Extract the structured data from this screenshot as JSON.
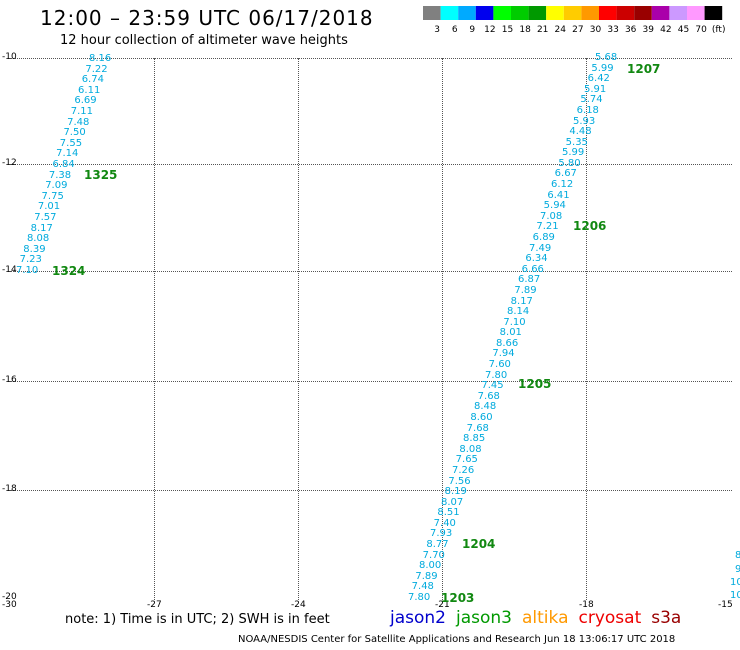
{
  "title": "12:00 – 23:59 UTC 06/17/2018",
  "subtitle": "12 hour collection of altimeter wave heights",
  "legend": {
    "labels": [
      "3",
      "6",
      "9",
      "12",
      "15",
      "18",
      "21",
      "24",
      "27",
      "30",
      "33",
      "36",
      "39",
      "42",
      "45",
      "70",
      "(ft)"
    ],
    "colors": [
      "#808080",
      "#00ffff",
      "#00aaff",
      "#0000ee",
      "#00ff00",
      "#00cc00",
      "#009900",
      "#ffff00",
      "#ffcc00",
      "#ff9900",
      "#ff0000",
      "#cc0000",
      "#990000",
      "#aa00aa",
      "#cc99ff",
      "#ff99ff",
      "#000000"
    ]
  },
  "axes": {
    "y_labels": [
      "-10",
      "-12",
      "-14",
      "-16",
      "-18",
      "-20"
    ],
    "x_labels": [
      "-30",
      "-27",
      "-24",
      "-21",
      "-18",
      "-15"
    ]
  },
  "tracks": [
    {
      "id": "left",
      "values": [
        "8.16",
        "7.22",
        "6.74",
        "6.11",
        "6.69",
        "7.11",
        "7.48",
        "7.50",
        "7.55",
        "7.14",
        "6.84",
        "7.38",
        "7.09",
        "7.75",
        "7.01",
        "7.57",
        "8.17",
        "8.08",
        "8.39",
        "7.23",
        "7.10"
      ]
    },
    {
      "id": "right",
      "values": [
        "5.68",
        "5.99",
        "6.42",
        "5.91",
        "5.74",
        "6.18",
        "5.93",
        "4.48",
        "5.35",
        "5.99",
        "5.80",
        "6.67",
        "6.12",
        "6.41",
        "5.94",
        "7.08",
        "7.21",
        "6.89",
        "7.49",
        "6.34",
        "6.66",
        "6.87",
        "7.89",
        "8.17",
        "8.14",
        "7.10",
        "8.01",
        "8.66",
        "7.94",
        "7.60",
        "7.80",
        "7.45",
        "7.68",
        "8.48",
        "8.60",
        "7.68",
        "8.85",
        "8.08",
        "7.65",
        "7.26",
        "7.56",
        "8.19",
        "8.07",
        "8.51",
        "7.40",
        "7.93",
        "8.77",
        "7.70",
        "8.00",
        "7.89",
        "7.48",
        "7.80"
      ]
    }
  ],
  "pass_labels": [
    "1207",
    "1325",
    "1206",
    "1324",
    "1205",
    "1204",
    "1203"
  ],
  "edge_values": [
    "8",
    "9",
    "10",
    "10"
  ],
  "note": "note: 1) Time is in UTC; 2) SWH is in feet",
  "satellites": [
    {
      "name": "jason2",
      "color": "#0000cc"
    },
    {
      "name": "jason3",
      "color": "#009900"
    },
    {
      "name": "altika",
      "color": "#ff9900"
    },
    {
      "name": "cryosat",
      "color": "#ee0000"
    },
    {
      "name": "s3a",
      "color": "#990000"
    }
  ],
  "credit": "NOAA/NESDIS Center for Satellite Applications and Research    Jun 18 13:06:17 UTC 2018"
}
